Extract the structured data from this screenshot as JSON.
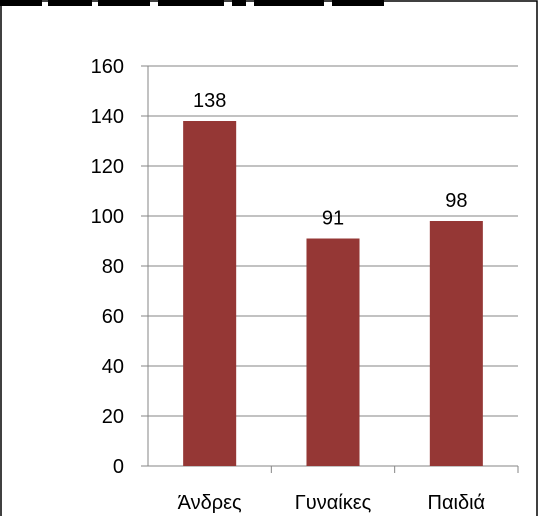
{
  "chart_data": {
    "type": "bar",
    "categories": [
      "Άνδρες",
      "Γυναίκες",
      "Παιδιά"
    ],
    "values": [
      138,
      91,
      98
    ],
    "data_labels": [
      "138",
      "91",
      "98"
    ],
    "title": "",
    "xlabel": "",
    "ylabel": "",
    "ylim": [
      0,
      160
    ],
    "yticks": [
      0,
      20,
      40,
      60,
      80,
      100,
      120,
      140,
      160
    ],
    "ytick_labels": [
      "0",
      "20",
      "40",
      "60",
      "80",
      "100",
      "120",
      "140",
      "160"
    ],
    "grid": true,
    "legend": "none",
    "colors": {
      "bar": "#953735",
      "grid": "#868686",
      "axis": "#868686",
      "text": "#000000",
      "border": "#000000"
    }
  }
}
